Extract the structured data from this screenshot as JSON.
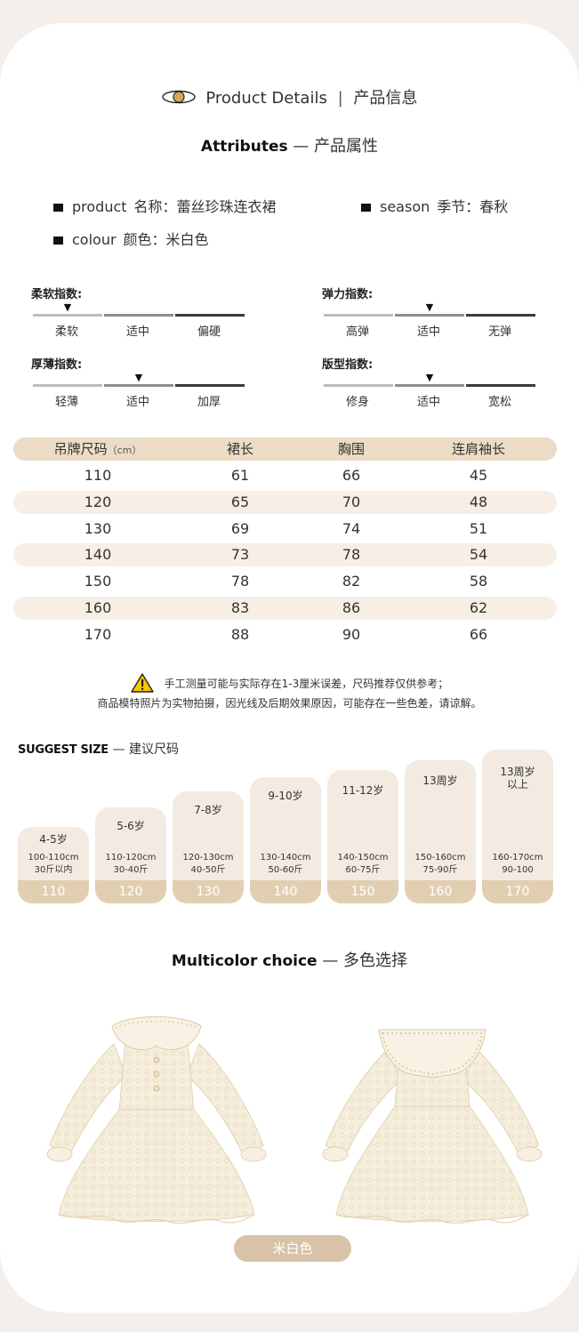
{
  "header": {
    "title_en": "Product Details",
    "separator": "|",
    "title_cn": "产品信息"
  },
  "attributes": {
    "title_en": "Attributes",
    "title_cn": "— 产品属性",
    "items": [
      {
        "en": "product",
        "cn": "名称：蕾丝珍珠连衣裙"
      },
      {
        "en": "season",
        "cn": "季节：春秋"
      },
      {
        "en": "colour",
        "cn": "颜色：米白色"
      }
    ]
  },
  "indices": [
    {
      "title": "柔软指数:",
      "labels": [
        "柔软",
        "适中",
        "偏硬"
      ],
      "selected": 0
    },
    {
      "title": "弹力指数:",
      "labels": [
        "高弹",
        "适中",
        "无弹"
      ],
      "selected": 1
    },
    {
      "title": "厚薄指数:",
      "labels": [
        "轻薄",
        "适中",
        "加厚"
      ],
      "selected": 1
    },
    {
      "title": "版型指数:",
      "labels": [
        "修身",
        "适中",
        "宽松"
      ],
      "selected": 1
    }
  ],
  "size_table": {
    "header": {
      "col1": "吊牌尺码",
      "col1_unit": "（cm）",
      "col2": "裙长",
      "col3": "胸围",
      "col4": "连肩袖长"
    },
    "rows": [
      [
        "110",
        "61",
        "66",
        "45"
      ],
      [
        "120",
        "65",
        "70",
        "48"
      ],
      [
        "130",
        "69",
        "74",
        "51"
      ],
      [
        "140",
        "73",
        "78",
        "54"
      ],
      [
        "150",
        "78",
        "82",
        "58"
      ],
      [
        "160",
        "83",
        "86",
        "62"
      ],
      [
        "170",
        "88",
        "90",
        "66"
      ]
    ]
  },
  "notes": {
    "line1": "手工测量可能与实际存在1-3厘米误差，尺码推荐仅供参考；",
    "line2": "商品模特照片为实物拍摄，因光线及后期效果原因，可能存在一些色差，请谅解。"
  },
  "suggest": {
    "title_en": "SUGGEST SIZE",
    "title_cn": "— 建议尺码",
    "cards": [
      {
        "age": "4-5岁",
        "height": "100-110cm",
        "weight": "30斤以内",
        "size": "110"
      },
      {
        "age": "5-6岁",
        "height": "110-120cm",
        "weight": "30-40斤",
        "size": "120"
      },
      {
        "age": "7-8岁",
        "height": "120-130cm",
        "weight": "40-50斤",
        "size": "130"
      },
      {
        "age": "9-10岁",
        "height": "130-140cm",
        "weight": "50-60斤",
        "size": "140"
      },
      {
        "age": "11-12岁",
        "height": "140-150cm",
        "weight": "60-75斤",
        "size": "150"
      },
      {
        "age": "13周岁",
        "height": "150-160cm",
        "weight": "75-90斤",
        "size": "160"
      },
      {
        "age": "13周岁以上",
        "age_line1": "13周岁",
        "age_line2": "以上",
        "height": "160-170cm",
        "weight": "90-100",
        "size": "170"
      }
    ]
  },
  "colors": {
    "title_en": "Multicolor choice",
    "title_cn": "— 多色选择",
    "option": "米白色"
  },
  "palette": {
    "page_bg": "#f4efea",
    "accent": "#d8c3a8",
    "row_stripe": "#f7efe5",
    "header_row": "#ecdcc6",
    "card_bg": "#f3ebe1",
    "card_foot": "#e2cfb2",
    "dress": "#f5ecd9"
  }
}
